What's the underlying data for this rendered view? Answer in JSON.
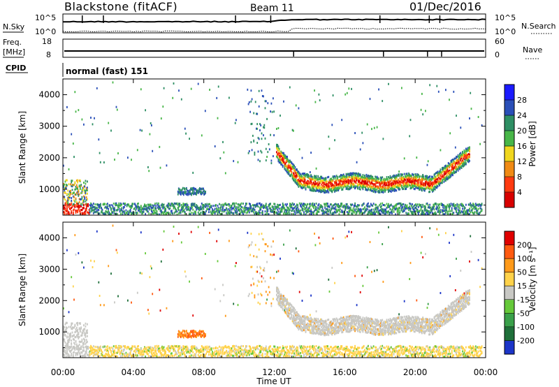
{
  "header": {
    "station": "Blackstone (fitACF)",
    "beam": "Beam 11",
    "date": "01/Dec/2016"
  },
  "noise_panel": {
    "left_label": "N.Sky",
    "right_label": "N.Search",
    "left_ticks": [
      "10^5",
      "10^0"
    ],
    "right_ticks": [
      "10^5",
      "10^0"
    ]
  },
  "freq_panel": {
    "left_label_line1": "Freq.",
    "left_label_line2": "[MHz]",
    "right_label": "Nave",
    "left_ticks": [
      "18",
      "8"
    ],
    "right_ticks": [
      "60",
      "0"
    ]
  },
  "cpid": {
    "label": "CPID",
    "value": "normal (fast) 151"
  },
  "power_panel": {
    "ylabel": "Slant Range [km]",
    "yticks": [
      "4000",
      "3000",
      "2000",
      "1000"
    ],
    "colorbar_label": "Power [dB]",
    "colorbar_ticks": [
      "28",
      "24",
      "20",
      "16",
      "12",
      "8",
      "4"
    ],
    "colors": [
      "#1a1aff",
      "#2a4fb8",
      "#2e8f64",
      "#48b648",
      "#f0d61e",
      "#f08a14",
      "#ff3a10",
      "#d80000"
    ]
  },
  "velocity_panel": {
    "ylabel": "Slant Range [km]",
    "yticks": [
      "4000",
      "3000",
      "2000",
      "1000"
    ],
    "colorbar_label": "Velocity [m s⁻¹]",
    "colorbar_ticks": [
      "200",
      "100",
      "50",
      "15",
      "-15",
      "-50",
      "-100",
      "-200"
    ],
    "colors": [
      "#1c35c8",
      "#1f6f3a",
      "#3aa04a",
      "#66c93a",
      "#c8c8c4",
      "#ffd24a",
      "#ff9a1a",
      "#ff5a10",
      "#e00000"
    ],
    "ground_color": "#c8c8c4"
  },
  "xaxis": {
    "label": "Time UT",
    "ticks": [
      "00:00",
      "04:00",
      "08:00",
      "12:00",
      "16:00",
      "20:00",
      "00:00"
    ]
  }
}
